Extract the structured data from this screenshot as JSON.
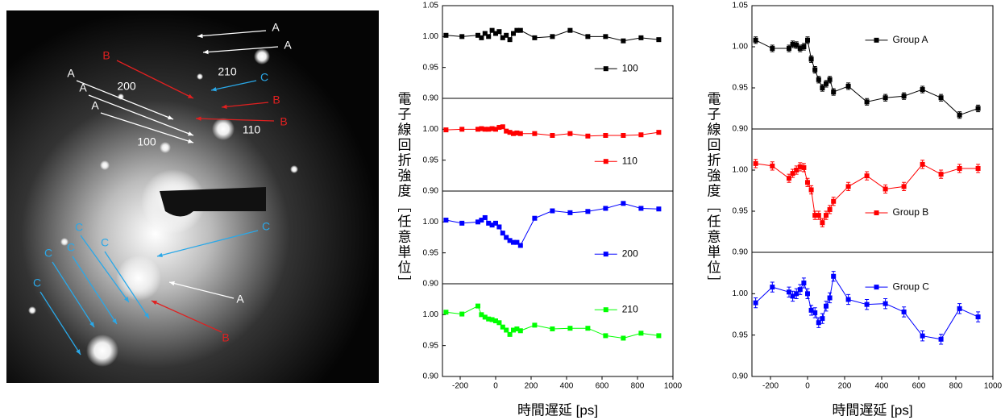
{
  "image": {
    "labels": [
      "A",
      "A",
      "B",
      "C",
      "210",
      "A",
      "A",
      "200",
      "B",
      "A",
      "B",
      "110",
      "100",
      "C",
      "C",
      "C",
      "C",
      "C",
      "C",
      "A",
      "B"
    ]
  },
  "chart_data": [
    {
      "type": "line",
      "x": [
        -280,
        -190,
        -100,
        -80,
        -60,
        -40,
        -20,
        0,
        20,
        40,
        60,
        80,
        100,
        120,
        140,
        220,
        320,
        420,
        520,
        620,
        720,
        820,
        920
      ],
      "xlim": [
        -300,
        1000
      ],
      "ylim": [
        0.9,
        1.05
      ],
      "yticks": [
        {
          "value": 0.9,
          "label": "0.90"
        },
        {
          "value": 0.95,
          "label": "0.95"
        },
        {
          "value": 1,
          "label": "1.00"
        },
        {
          "value": 1.05,
          "label": "1.05"
        }
      ],
      "ylabel": "電子線回折強度［任意単位］",
      "legend": "lower right",
      "series": [
        {
          "name": "100",
          "color": "#000000",
          "values": [
            1.002,
            1.0,
            1.002,
            0.998,
            1.005,
            1.0,
            1.01,
            1.005,
            1.008,
            0.998,
            1.002,
            0.995,
            1.005,
            1.01,
            1.01,
            0.998,
            1.0,
            1.01,
            1.0,
            1.0,
            0.993,
            0.998,
            0.995
          ]
        }
      ]
    },
    {
      "type": "line",
      "x": [
        -280,
        -190,
        -100,
        -80,
        -60,
        -40,
        -20,
        0,
        20,
        40,
        60,
        80,
        100,
        120,
        140,
        220,
        320,
        420,
        520,
        620,
        720,
        820,
        920
      ],
      "xlim": [
        -300,
        1000
      ],
      "ylim": [
        0.9,
        1.05
      ],
      "yticks": [
        {
          "value": 0.9,
          "label": "0.90"
        },
        {
          "value": 0.95,
          "label": "0.95"
        },
        {
          "value": 1,
          "label": "1.00"
        }
      ],
      "legend": "lower right",
      "series": [
        {
          "name": "110",
          "color": "#ff0000",
          "values": [
            0.999,
            1.0,
            1.0,
            1.001,
            1.0,
            1.0,
            1.001,
            1.0,
            1.003,
            1.004,
            0.997,
            0.995,
            0.993,
            0.994,
            0.993,
            0.993,
            0.99,
            0.993,
            0.989,
            0.99,
            0.99,
            0.991,
            0.995
          ]
        }
      ]
    },
    {
      "type": "line",
      "x": [
        -280,
        -190,
        -100,
        -80,
        -60,
        -40,
        -20,
        0,
        20,
        40,
        60,
        80,
        100,
        120,
        140,
        220,
        320,
        420,
        520,
        620,
        720,
        820,
        920
      ],
      "xlim": [
        -300,
        1000
      ],
      "ylim": [
        0.9,
        1.05
      ],
      "yticks": [
        {
          "value": 0.9,
          "label": "0.90"
        },
        {
          "value": 0.95,
          "label": "0.95"
        },
        {
          "value": 1,
          "label": "1.00"
        }
      ],
      "legend": "lower right",
      "series": [
        {
          "name": "200",
          "color": "#0000ff",
          "values": [
            1.003,
            0.998,
            1.0,
            1.003,
            1.007,
            0.998,
            0.995,
            0.998,
            0.992,
            0.982,
            0.975,
            0.97,
            0.967,
            0.967,
            0.962,
            1.006,
            1.018,
            1.015,
            1.017,
            1.022,
            1.03,
            1.022,
            1.021
          ]
        }
      ]
    },
    {
      "type": "line",
      "x": [
        -280,
        -190,
        -100,
        -80,
        -60,
        -40,
        -20,
        0,
        20,
        40,
        60,
        80,
        100,
        120,
        140,
        220,
        320,
        420,
        520,
        620,
        720,
        820,
        920
      ],
      "xlim": [
        -300,
        1000
      ],
      "ylim": [
        0.9,
        1.05
      ],
      "yticks": [
        {
          "value": 0.9,
          "label": "0.90"
        },
        {
          "value": 0.95,
          "label": "0.95"
        },
        {
          "value": 1,
          "label": "1.00"
        }
      ],
      "xticks": [
        -200,
        0,
        200,
        400,
        600,
        800,
        1000
      ],
      "xlabel": "時間遅延 [ps]",
      "legend": "upper right",
      "series": [
        {
          "name": "210",
          "color": "#00ff00",
          "values": [
            1.004,
            1.001,
            1.014,
            1.0,
            0.996,
            0.993,
            0.992,
            0.99,
            0.987,
            0.98,
            0.975,
            0.968,
            0.975,
            0.977,
            0.974,
            0.983,
            0.977,
            0.978,
            0.978,
            0.966,
            0.962,
            0.97,
            0.966
          ]
        }
      ]
    },
    {
      "type": "line",
      "x": [
        -280,
        -190,
        -100,
        -80,
        -60,
        -40,
        -20,
        0,
        20,
        40,
        60,
        80,
        100,
        120,
        140,
        220,
        320,
        420,
        520,
        620,
        720,
        820,
        920
      ],
      "xlim": [
        -300,
        1000
      ],
      "ylim": [
        0.9,
        1.05
      ],
      "yticks": [
        {
          "value": 0.9,
          "label": "0.90"
        },
        {
          "value": 0.95,
          "label": "0.95"
        },
        {
          "value": 1,
          "label": "1.00"
        },
        {
          "value": 1.05,
          "label": "1.05"
        }
      ],
      "ylabel": "電子線回折強度［任意単位］",
      "legend": "upper right",
      "error": 0.004,
      "series": [
        {
          "name": "Group A",
          "color": "#000000",
          "values": [
            1.008,
            0.998,
            0.998,
            1.003,
            1.002,
            0.998,
            1.0,
            1.008,
            0.985,
            0.972,
            0.96,
            0.95,
            0.955,
            0.96,
            0.945,
            0.952,
            0.933,
            0.938,
            0.94,
            0.948,
            0.938,
            0.917,
            0.925
          ]
        }
      ]
    },
    {
      "type": "line",
      "x": [
        -280,
        -190,
        -100,
        -80,
        -60,
        -40,
        -20,
        0,
        20,
        40,
        60,
        80,
        100,
        120,
        140,
        220,
        320,
        420,
        520,
        620,
        720,
        820,
        920
      ],
      "xlim": [
        -300,
        1000
      ],
      "ylim": [
        0.9,
        1.05
      ],
      "yticks": [
        {
          "value": 0.9,
          "label": "0.90"
        },
        {
          "value": 0.95,
          "label": "0.95"
        },
        {
          "value": 1,
          "label": "1.00"
        }
      ],
      "legend": "lower right",
      "error": 0.005,
      "series": [
        {
          "name": "Group B",
          "color": "#ff0000",
          "values": [
            1.008,
            1.005,
            0.99,
            0.996,
            1.0,
            1.004,
            1.003,
            0.985,
            0.976,
            0.945,
            0.945,
            0.936,
            0.945,
            0.952,
            0.962,
            0.98,
            0.993,
            0.977,
            0.98,
            1.007,
            0.995,
            1.002,
            1.002
          ]
        }
      ]
    },
    {
      "type": "line",
      "x": [
        -280,
        -190,
        -100,
        -80,
        -60,
        -40,
        -20,
        0,
        20,
        40,
        60,
        80,
        100,
        120,
        140,
        220,
        320,
        420,
        520,
        620,
        720,
        820,
        920
      ],
      "xlim": [
        -300,
        1000
      ],
      "ylim": [
        0.9,
        1.05
      ],
      "yticks": [
        {
          "value": 0.9,
          "label": "0.90"
        },
        {
          "value": 0.95,
          "label": "0.95"
        },
        {
          "value": 1,
          "label": "1.00"
        }
      ],
      "xticks": [
        -200,
        0,
        200,
        400,
        600,
        800,
        1000
      ],
      "xlabel": "時間遅延 [ps]",
      "legend": "upper right",
      "error": 0.006,
      "series": [
        {
          "name": "Group C",
          "color": "#0000ff",
          "values": [
            0.989,
            1.008,
            1.002,
            0.997,
            1.0,
            1.005,
            1.013,
            1.0,
            0.98,
            0.977,
            0.965,
            0.97,
            0.985,
            0.995,
            1.021,
            0.993,
            0.987,
            0.988,
            0.978,
            0.949,
            0.945,
            0.982,
            0.972
          ]
        }
      ]
    }
  ]
}
